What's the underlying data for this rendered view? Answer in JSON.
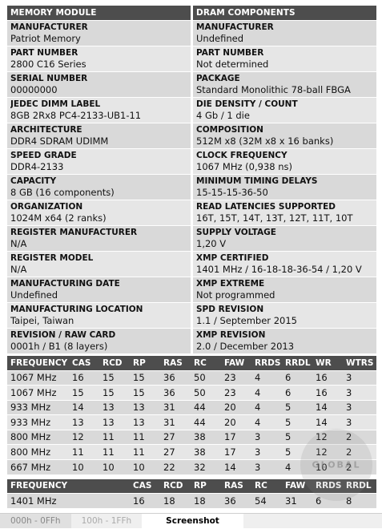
{
  "left": {
    "title": "MEMORY MODULE",
    "fields": [
      {
        "label": "MANUFACTURER",
        "value": "Patriot Memory"
      },
      {
        "label": "PART NUMBER",
        "value": "2800 C16 Series"
      },
      {
        "label": "SERIAL NUMBER",
        "value": "00000000"
      },
      {
        "label": "JEDEC DIMM LABEL",
        "value": "8GB 2Rx8 PC4-2133-UB1-11"
      },
      {
        "label": "ARCHITECTURE",
        "value": "DDR4 SDRAM UDIMM"
      },
      {
        "label": "SPEED GRADE",
        "value": "DDR4-2133"
      },
      {
        "label": "CAPACITY",
        "value": "8 GB (16 components)"
      },
      {
        "label": "ORGANIZATION",
        "value": "1024M x64 (2 ranks)"
      },
      {
        "label": "REGISTER MANUFACTURER",
        "value": "N/A"
      },
      {
        "label": "REGISTER MODEL",
        "value": "N/A"
      },
      {
        "label": "MANUFACTURING DATE",
        "value": "Undefined"
      },
      {
        "label": "MANUFACTURING LOCATION",
        "value": "Taipei, Taiwan"
      },
      {
        "label": "REVISION / RAW CARD",
        "value": "0001h / B1 (8 layers)"
      }
    ]
  },
  "right": {
    "title": "DRAM COMPONENTS",
    "fields": [
      {
        "label": "MANUFACTURER",
        "value": "Undefined"
      },
      {
        "label": "PART NUMBER",
        "value": "Not determined"
      },
      {
        "label": "PACKAGE",
        "value": "Standard Monolithic 78-ball FBGA"
      },
      {
        "label": "DIE DENSITY / COUNT",
        "value": "4 Gb / 1 die"
      },
      {
        "label": "COMPOSITION",
        "value": "512M x8 (32M x8 x 16 banks)"
      },
      {
        "label": "CLOCK FREQUENCY",
        "value": "1067 MHz (0,938 ns)"
      },
      {
        "label": "MINIMUM TIMING DELAYS",
        "value": "15-15-15-36-50"
      },
      {
        "label": "READ LATENCIES SUPPORTED",
        "value": "16T, 15T, 14T, 13T, 12T, 11T, 10T"
      },
      {
        "label": "SUPPLY VOLTAGE",
        "value": "1,20 V"
      },
      {
        "label": "XMP CERTIFIED",
        "value": "1401 MHz / 16-18-18-36-54 / 1,20 V"
      },
      {
        "label": "XMP EXTREME",
        "value": "Not programmed"
      },
      {
        "label": "SPD REVISION",
        "value": "1.1 / September 2015"
      },
      {
        "label": "XMP REVISION",
        "value": "2.0 / December 2013"
      }
    ]
  },
  "timings": {
    "headers": [
      "FREQUENCY",
      "CAS",
      "RCD",
      "RP",
      "RAS",
      "RC",
      "FAW",
      "RRDS",
      "RRDL",
      "WR",
      "WTRS"
    ],
    "rows": [
      [
        "1067 MHz",
        "16",
        "15",
        "15",
        "36",
        "50",
        "23",
        "4",
        "6",
        "16",
        "3"
      ],
      [
        "1067 MHz",
        "15",
        "15",
        "15",
        "36",
        "50",
        "23",
        "4",
        "6",
        "16",
        "3"
      ],
      [
        "933 MHz",
        "14",
        "13",
        "13",
        "31",
        "44",
        "20",
        "4",
        "5",
        "14",
        "3"
      ],
      [
        "933 MHz",
        "13",
        "13",
        "13",
        "31",
        "44",
        "20",
        "4",
        "5",
        "14",
        "3"
      ],
      [
        "800 MHz",
        "12",
        "11",
        "11",
        "27",
        "38",
        "17",
        "3",
        "5",
        "12",
        "2"
      ],
      [
        "800 MHz",
        "11",
        "11",
        "11",
        "27",
        "38",
        "17",
        "3",
        "5",
        "12",
        "2"
      ],
      [
        "667 MHz",
        "10",
        "10",
        "10",
        "22",
        "32",
        "14",
        "3",
        "4",
        "10",
        "2"
      ]
    ]
  },
  "xmp": {
    "headers": [
      "FREQUENCY",
      "CAS",
      "RCD",
      "RP",
      "RAS",
      "RC",
      "FAW",
      "RRDS",
      "RRDL"
    ],
    "rows": [
      [
        "1401 MHz",
        "16",
        "18",
        "18",
        "36",
        "54",
        "31",
        "6",
        "8"
      ]
    ]
  },
  "tabs": [
    "000h - 0FFh",
    "100h - 1FFh",
    "Screenshot"
  ],
  "watermark": "GLOBAL"
}
